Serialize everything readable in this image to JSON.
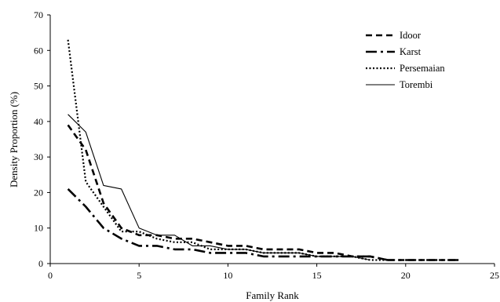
{
  "chart_data": {
    "type": "line",
    "title": "",
    "xlabel": "Family Rank",
    "ylabel": "Density Proportion (%)",
    "xlim": [
      0,
      25
    ],
    "ylim": [
      0,
      70
    ],
    "x_ticks": [
      0,
      5,
      10,
      15,
      20,
      25
    ],
    "y_ticks": [
      0,
      10,
      20,
      30,
      40,
      50,
      60,
      70
    ],
    "grid": false,
    "legend_position": "top-right",
    "series": [
      {
        "name": "Idoor",
        "dash": "dashed",
        "x": [
          1,
          2,
          3,
          4,
          5,
          6,
          7,
          8,
          9,
          10,
          11,
          12,
          13,
          14,
          15,
          16,
          17,
          18,
          19,
          20,
          21,
          22,
          23
        ],
        "y": [
          39,
          32,
          17,
          10,
          8,
          8,
          7,
          7,
          6,
          5,
          5,
          4,
          4,
          4,
          3,
          3,
          2,
          2,
          1,
          1,
          1,
          1,
          1
        ]
      },
      {
        "name": "Karst",
        "dash": "dash-dot",
        "x": [
          1,
          2,
          3,
          4,
          5,
          6,
          7,
          8,
          9,
          10,
          11,
          12,
          13,
          14,
          15,
          16,
          17,
          18,
          19,
          20,
          21,
          22,
          23
        ],
        "y": [
          21,
          16,
          10,
          7,
          5,
          5,
          4,
          4,
          3,
          3,
          3,
          2,
          2,
          2,
          2,
          2,
          2,
          2,
          1,
          1,
          1,
          1,
          1
        ]
      },
      {
        "name": "Persemaian",
        "dash": "dotted",
        "x": [
          1,
          2,
          3,
          4,
          5,
          6,
          7,
          8,
          9,
          10,
          11,
          12,
          13,
          14,
          15,
          16,
          17,
          18,
          19
        ],
        "y": [
          63,
          23,
          16,
          9,
          9,
          7,
          6,
          6,
          4,
          4,
          4,
          3,
          3,
          3,
          2,
          2,
          2,
          1,
          1
        ]
      },
      {
        "name": "Torembi",
        "dash": "solid",
        "x": [
          1,
          2,
          3,
          4,
          5,
          6,
          7,
          8,
          9,
          10,
          11,
          12,
          13,
          14,
          15,
          16,
          17,
          18
        ],
        "y": [
          42,
          37,
          22,
          21,
          10,
          8,
          8,
          5,
          5,
          4,
          4,
          3,
          3,
          3,
          2,
          2,
          2,
          1
        ]
      }
    ]
  }
}
